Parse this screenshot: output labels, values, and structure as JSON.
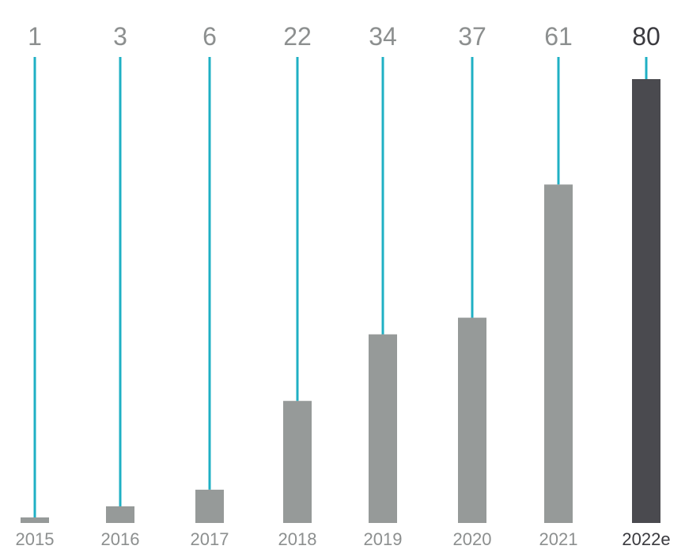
{
  "chart_data": {
    "type": "bar",
    "categories": [
      "2015",
      "2016",
      "2017",
      "2018",
      "2019",
      "2020",
      "2021",
      "2022e"
    ],
    "values": [
      1,
      3,
      6,
      22,
      34,
      37,
      61,
      80
    ],
    "data_labels": [
      "1",
      "3",
      "6",
      "22",
      "34",
      "37",
      "61",
      "80"
    ],
    "highlighted_category": "2022e",
    "title": "",
    "xlabel": "",
    "ylabel": "",
    "ylim": [
      0,
      80
    ],
    "grid": false,
    "legend": "none",
    "colors": {
      "bar": "#969a99",
      "highlight_bar": "#4a4a4f",
      "leader_line": "#1fb0c4",
      "label": "#8c8f8f",
      "highlight_label": "#3a3a3f"
    }
  }
}
